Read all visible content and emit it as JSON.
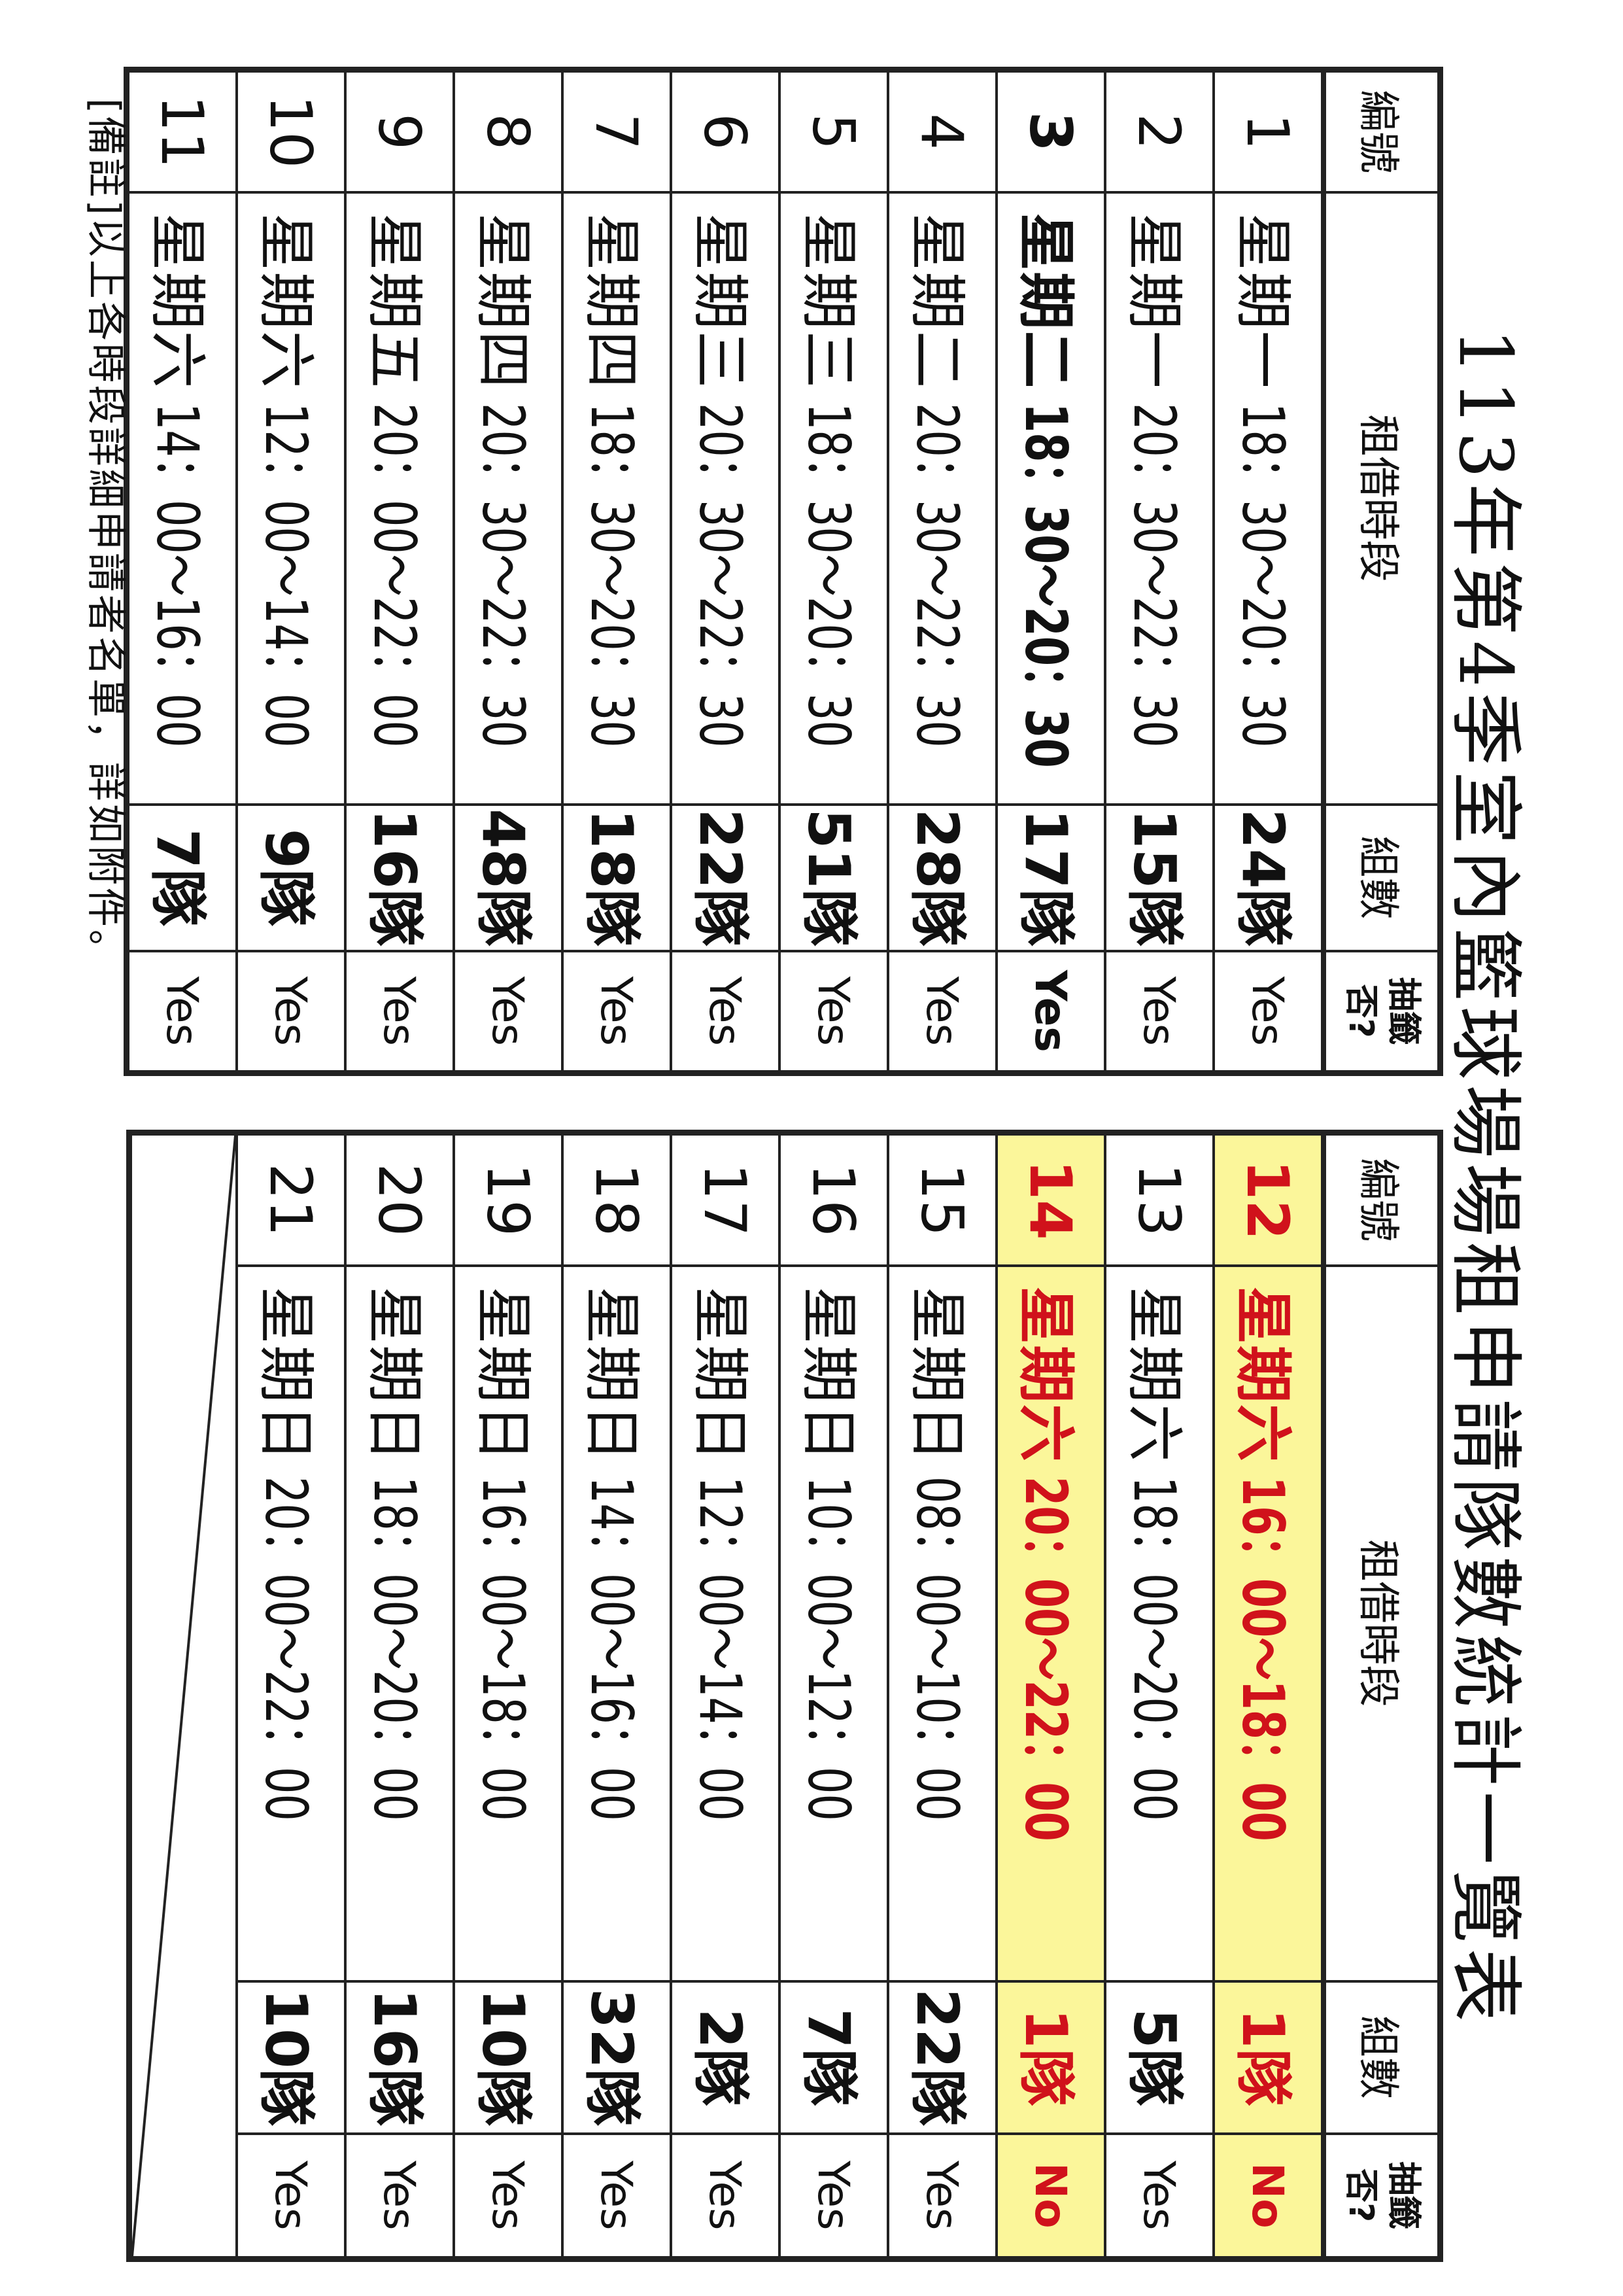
{
  "title": "113年第4季室內籃球場場租申請隊數統計一覽表",
  "headers": {
    "no": "編號",
    "period": "租借時段",
    "count": "組數",
    "draw": "抽籤否?"
  },
  "highlight_color": "#fbf69a",
  "highlight_text_color": "#d0121b",
  "left_rows": [
    {
      "no": "1",
      "weekday": "星期一",
      "time": "18：30～20：30",
      "count": "24隊",
      "draw": "Yes"
    },
    {
      "no": "2",
      "weekday": "星期一",
      "time": "20：30～22：30",
      "count": "15隊",
      "draw": "Yes"
    },
    {
      "no": "3",
      "weekday": "星期二",
      "time": "18：30～20：30",
      "count": "17隊",
      "draw": "Yes",
      "style": "bold"
    },
    {
      "no": "4",
      "weekday": "星期二",
      "time": "20：30～22：30",
      "count": "28隊",
      "draw": "Yes"
    },
    {
      "no": "5",
      "weekday": "星期三",
      "time": "18：30～20：30",
      "count": "51隊",
      "draw": "Yes"
    },
    {
      "no": "6",
      "weekday": "星期三",
      "time": "20：30～22：30",
      "count": "22隊",
      "draw": "Yes"
    },
    {
      "no": "7",
      "weekday": "星期四",
      "time": "18：30～20：30",
      "count": "18隊",
      "draw": "Yes"
    },
    {
      "no": "8",
      "weekday": "星期四",
      "time": "20：30～22：30",
      "count": "48隊",
      "draw": "Yes"
    },
    {
      "no": "9",
      "weekday": "星期五",
      "time": "20：00～22：00",
      "count": "16隊",
      "draw": "Yes"
    },
    {
      "no": "10",
      "weekday": "星期六",
      "time": "12：00～14：00",
      "count": "9隊",
      "draw": "Yes"
    },
    {
      "no": "11",
      "weekday": "星期六",
      "time": "14：00～16：00",
      "count": "7隊",
      "draw": "Yes"
    }
  ],
  "right_rows": [
    {
      "no": "12",
      "weekday": "星期六",
      "time": "16：00～18：00",
      "count": "1隊",
      "draw": "No",
      "style": "hl"
    },
    {
      "no": "13",
      "weekday": "星期六",
      "time": "18：00～20：00",
      "count": "5隊",
      "draw": "Yes"
    },
    {
      "no": "14",
      "weekday": "星期六",
      "time": "20：00～22：00",
      "count": "1隊",
      "draw": "No",
      "style": "hl"
    },
    {
      "no": "15",
      "weekday": "星期日",
      "time": "08：00～10：00",
      "count": "22隊",
      "draw": "Yes"
    },
    {
      "no": "16",
      "weekday": "星期日",
      "time": "10：00～12：00",
      "count": "7隊",
      "draw": "Yes"
    },
    {
      "no": "17",
      "weekday": "星期日",
      "time": "12：00～14：00",
      "count": "2隊",
      "draw": "Yes"
    },
    {
      "no": "18",
      "weekday": "星期日",
      "time": "14：00～16：00",
      "count": "32隊",
      "draw": "Yes"
    },
    {
      "no": "19",
      "weekday": "星期日",
      "time": "16：00～18：00",
      "count": "10隊",
      "draw": "Yes"
    },
    {
      "no": "20",
      "weekday": "星期日",
      "time": "18：00～20：00",
      "count": "16隊",
      "draw": "Yes"
    },
    {
      "no": "21",
      "weekday": "星期日",
      "time": "20：00～22：00",
      "count": "10隊",
      "draw": "Yes"
    }
  ],
  "note": "[備註]以上各時段詳細申請者名單，詳如附件。"
}
